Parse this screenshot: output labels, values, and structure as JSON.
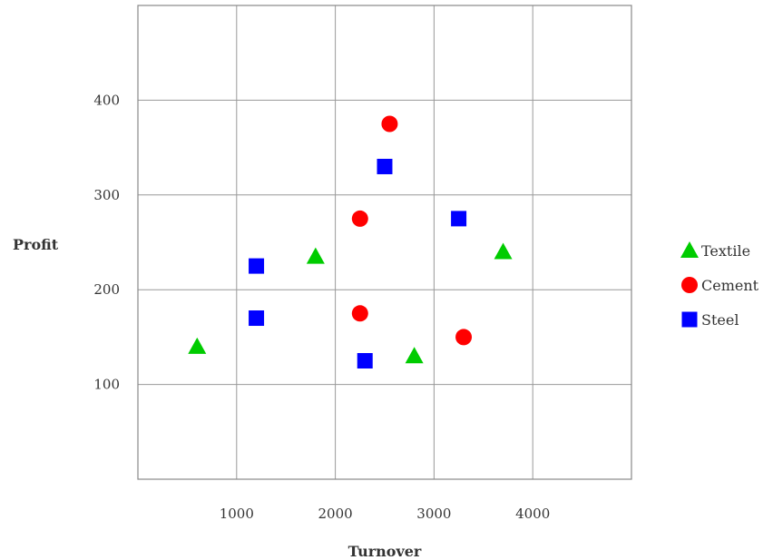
{
  "chart_data": {
    "type": "scatter",
    "xlabel": "Turnover",
    "ylabel": "Profit",
    "xlim": [
      0,
      5000
    ],
    "ylim": [
      0,
      500
    ],
    "x_ticks": [
      1000,
      2000,
      3000,
      4000
    ],
    "y_ticks": [
      100,
      200,
      300,
      400
    ],
    "grid": true,
    "legend_position": "right",
    "series": [
      {
        "name": "Textile",
        "marker": "triangle",
        "color": "#00cc00",
        "points": [
          {
            "x": 600,
            "y": 140
          },
          {
            "x": 1800,
            "y": 235
          },
          {
            "x": 2800,
            "y": 130
          },
          {
            "x": 3700,
            "y": 240
          }
        ]
      },
      {
        "name": "Cement",
        "marker": "circle",
        "color": "#ff0000",
        "points": [
          {
            "x": 2550,
            "y": 375
          },
          {
            "x": 2250,
            "y": 275
          },
          {
            "x": 2250,
            "y": 175
          },
          {
            "x": 3300,
            "y": 150
          }
        ]
      },
      {
        "name": "Steel",
        "marker": "square",
        "color": "#0000ff",
        "points": [
          {
            "x": 2500,
            "y": 330
          },
          {
            "x": 3250,
            "y": 275
          },
          {
            "x": 1200,
            "y": 225
          },
          {
            "x": 1200,
            "y": 170
          },
          {
            "x": 2300,
            "y": 125
          }
        ]
      }
    ]
  }
}
